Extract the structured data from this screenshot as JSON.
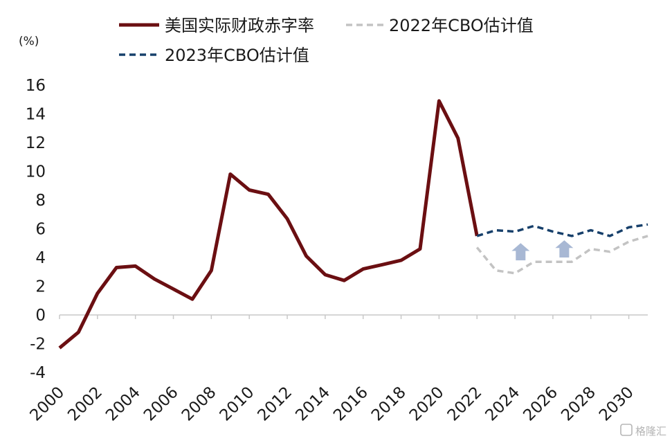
{
  "chart_data": {
    "type": "line",
    "unit_label": "(%)",
    "ylim": [
      -4,
      16
    ],
    "yticks": [
      -4,
      -2,
      0,
      2,
      4,
      6,
      8,
      10,
      12,
      14,
      16
    ],
    "xlim": [
      2000,
      2031
    ],
    "xticks": [
      2000,
      2002,
      2004,
      2006,
      2008,
      2010,
      2012,
      2014,
      2016,
      2018,
      2020,
      2022,
      2024,
      2026,
      2028,
      2030
    ],
    "grid": false,
    "legend_position": "top",
    "series": [
      {
        "name": "美国实际财政赤字率",
        "style": "solid",
        "color": "#6b0f12",
        "x": [
          2000,
          2001,
          2002,
          2003,
          2004,
          2005,
          2006,
          2007,
          2008,
          2009,
          2010,
          2011,
          2012,
          2013,
          2014,
          2015,
          2016,
          2017,
          2018,
          2019,
          2020,
          2021,
          2022
        ],
        "y": [
          -2.3,
          -1.2,
          1.5,
          3.3,
          3.4,
          2.5,
          1.8,
          1.1,
          3.1,
          9.8,
          8.7,
          8.4,
          6.7,
          4.1,
          2.8,
          2.4,
          3.2,
          3.5,
          3.8,
          4.6,
          14.9,
          12.3,
          5.5
        ]
      },
      {
        "name": "2022年CBO估计值",
        "style": "dashed",
        "color": "#c3c3c3",
        "x": [
          2022,
          2023,
          2024,
          2025,
          2026,
          2027,
          2028,
          2029,
          2030,
          2031
        ],
        "y": [
          4.7,
          3.1,
          2.9,
          3.7,
          3.7,
          3.7,
          4.6,
          4.4,
          5.1,
          5.5
        ]
      },
      {
        "name": "2023年CBO估计值",
        "style": "dashed",
        "color": "#17406b",
        "x": [
          2022,
          2023,
          2024,
          2025,
          2026,
          2027,
          2028,
          2029,
          2030,
          2031
        ],
        "y": [
          5.5,
          5.9,
          5.8,
          6.2,
          5.8,
          5.5,
          5.9,
          5.5,
          6.1,
          6.3
        ]
      }
    ],
    "annotations": [
      {
        "type": "up-arrow",
        "x": 2024.3,
        "y_bottom": 3.8,
        "y_top": 5.0,
        "color": "#a8b8d4"
      },
      {
        "type": "up-arrow",
        "x": 2026.6,
        "y_bottom": 4.0,
        "y_top": 5.2,
        "color": "#a8b8d4"
      }
    ]
  },
  "watermark": {
    "icon": "gelonghui-logo-icon",
    "text": "格隆汇"
  }
}
